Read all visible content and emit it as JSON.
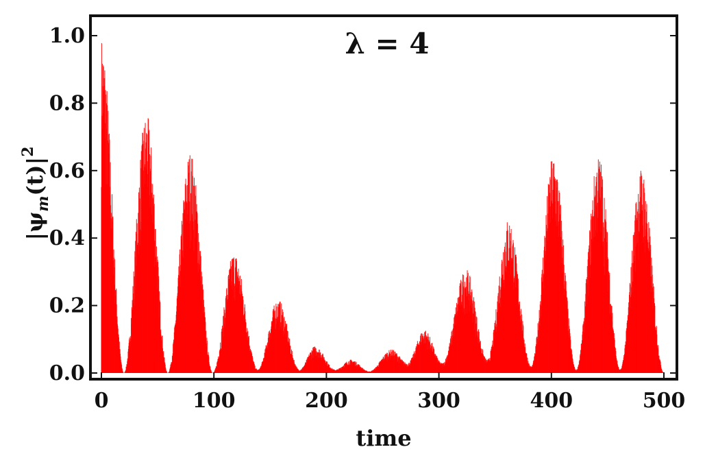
{
  "chart_data": {
    "type": "bar",
    "annotation": "λ = 4",
    "xlabel": "time",
    "ylabel": "|ψm(t)|²",
    "ylabel_parts": {
      "open": "|ψ",
      "sub": "m",
      "close": "(t)|",
      "sup": "2"
    },
    "xlim": [
      0,
      500
    ],
    "ylim": [
      0,
      1.0
    ],
    "xticks": [
      0,
      100,
      200,
      300,
      400,
      500
    ],
    "yticks": [
      "0.0",
      "0.2",
      "0.4",
      "0.6",
      "0.8",
      "1.0"
    ],
    "grid": false,
    "bar_color": "#ff0000",
    "bar_stroke_color": "#e06060",
    "envelope_peaks": [
      {
        "time": 0,
        "value": 1.0
      },
      {
        "time": 40,
        "value": 0.77
      },
      {
        "time": 79,
        "value": 0.66
      },
      {
        "time": 118,
        "value": 0.36
      },
      {
        "time": 157,
        "value": 0.22
      },
      {
        "time": 190,
        "value": 0.08
      },
      {
        "time": 222,
        "value": 0.04
      },
      {
        "time": 258,
        "value": 0.07
      },
      {
        "time": 287,
        "value": 0.13
      },
      {
        "time": 324,
        "value": 0.31
      },
      {
        "time": 362,
        "value": 0.46
      },
      {
        "time": 402,
        "value": 0.65
      },
      {
        "time": 442,
        "value": 0.65
      },
      {
        "time": 480,
        "value": 0.61
      }
    ],
    "envelope_minima": [
      {
        "time": 20,
        "value": 0.0
      },
      {
        "time": 59,
        "value": 0.0
      },
      {
        "time": 99,
        "value": 0.0
      },
      {
        "time": 139,
        "value": 0.01
      },
      {
        "time": 176,
        "value": 0.01
      },
      {
        "time": 208,
        "value": 0.01
      },
      {
        "time": 238,
        "value": 0.005
      },
      {
        "time": 272,
        "value": 0.03
      },
      {
        "time": 303,
        "value": 0.03
      },
      {
        "time": 343,
        "value": 0.04
      },
      {
        "time": 382,
        "value": 0.02
      },
      {
        "time": 422,
        "value": 0.01
      },
      {
        "time": 461,
        "value": 0.01
      },
      {
        "time": 500,
        "value": 0.0
      }
    ]
  }
}
